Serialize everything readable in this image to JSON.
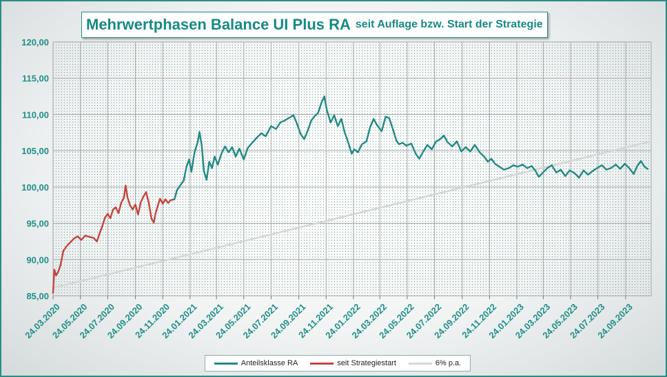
{
  "colors": {
    "fund": "#208a83",
    "start": "#c3453d",
    "target": "#d6d6d6",
    "axis_text": "#1f8f87",
    "grid": "#a9a9a9"
  },
  "chart_data": {
    "type": "line",
    "title": "Mehrwertphasen Balance UI Plus RA",
    "subtitle": "seit Auflage bzw. Start der Strategie",
    "xlabel": "",
    "ylabel": "",
    "x_range": [
      "2020-03-24",
      "2023-11-20"
    ],
    "ylim": [
      85,
      120
    ],
    "y_ticks": [
      "120,00",
      "115,00",
      "110,00",
      "105,00",
      "100,00",
      "95,00",
      "90,00",
      "85,00"
    ],
    "x_ticks": [
      "24.03.2020",
      "24.05.2020",
      "24.07.2020",
      "24.09.2020",
      "24.11.2020",
      "24.01.2021",
      "24.03.2021",
      "24.05.2021",
      "24.07.2021",
      "24.09.2021",
      "24.11.2021",
      "24.01.2022",
      "24.03.2022",
      "24.05.2022",
      "24.07.2022",
      "24.09.2022",
      "24.11.2022",
      "24.01.2023",
      "24.03.2023",
      "24.05.2023",
      "24.07.2023",
      "24.09.2023"
    ],
    "grid": true,
    "legend_position": "bottom",
    "series": [
      {
        "name": "Anteilsklasse RA",
        "color": "#208a83",
        "points": [
          [
            "2020-12-20",
            98.3
          ],
          [
            "2020-12-26",
            99.6
          ],
          [
            "2021-01-02",
            100.2
          ],
          [
            "2021-01-10",
            100.9
          ],
          [
            "2021-01-16",
            102.8
          ],
          [
            "2021-01-22",
            103.8
          ],
          [
            "2021-01-27",
            102.1
          ],
          [
            "2021-02-03",
            104.8
          ],
          [
            "2021-02-10",
            106.2
          ],
          [
            "2021-02-14",
            107.6
          ],
          [
            "2021-02-19",
            105.8
          ],
          [
            "2021-02-24",
            102.2
          ],
          [
            "2021-03-02",
            101.0
          ],
          [
            "2021-03-08",
            103.5
          ],
          [
            "2021-03-14",
            102.6
          ],
          [
            "2021-03-20",
            104.2
          ],
          [
            "2021-03-27",
            103.1
          ],
          [
            "2021-04-04",
            104.6
          ],
          [
            "2021-04-12",
            105.6
          ],
          [
            "2021-04-20",
            104.8
          ],
          [
            "2021-04-28",
            105.5
          ],
          [
            "2021-05-06",
            104.2
          ],
          [
            "2021-05-14",
            105.3
          ],
          [
            "2021-05-24",
            103.8
          ],
          [
            "2021-06-02",
            105.4
          ],
          [
            "2021-06-12",
            106.1
          ],
          [
            "2021-06-22",
            106.8
          ],
          [
            "2021-07-02",
            107.4
          ],
          [
            "2021-07-12",
            107.0
          ],
          [
            "2021-07-24",
            108.4
          ],
          [
            "2021-08-04",
            108.0
          ],
          [
            "2021-08-14",
            108.9
          ],
          [
            "2021-08-24",
            109.2
          ],
          [
            "2021-09-04",
            109.6
          ],
          [
            "2021-09-12",
            109.9
          ],
          [
            "2021-09-20",
            108.7
          ],
          [
            "2021-09-28",
            107.3
          ],
          [
            "2021-10-06",
            106.6
          ],
          [
            "2021-10-14",
            107.8
          ],
          [
            "2021-10-22",
            109.2
          ],
          [
            "2021-10-30",
            109.8
          ],
          [
            "2021-11-06",
            110.2
          ],
          [
            "2021-11-14",
            111.7
          ],
          [
            "2021-11-20",
            112.5
          ],
          [
            "2021-11-26",
            110.5
          ],
          [
            "2021-12-04",
            108.9
          ],
          [
            "2021-12-12",
            109.9
          ],
          [
            "2021-12-20",
            108.4
          ],
          [
            "2021-12-28",
            109.4
          ],
          [
            "2022-01-04",
            107.6
          ],
          [
            "2022-01-12",
            106.2
          ],
          [
            "2022-01-20",
            104.6
          ],
          [
            "2022-01-26",
            105.2
          ],
          [
            "2022-02-03",
            104.8
          ],
          [
            "2022-02-12",
            105.9
          ],
          [
            "2022-02-22",
            106.3
          ],
          [
            "2022-03-02",
            108.2
          ],
          [
            "2022-03-10",
            109.4
          ],
          [
            "2022-03-18",
            108.5
          ],
          [
            "2022-03-28",
            107.7
          ],
          [
            "2022-04-06",
            109.7
          ],
          [
            "2022-04-14",
            109.5
          ],
          [
            "2022-04-22",
            108.0
          ],
          [
            "2022-04-30",
            106.4
          ],
          [
            "2022-05-06",
            105.9
          ],
          [
            "2022-05-14",
            106.1
          ],
          [
            "2022-05-22",
            105.7
          ],
          [
            "2022-06-02",
            106.0
          ],
          [
            "2022-06-12",
            104.6
          ],
          [
            "2022-06-20",
            103.9
          ],
          [
            "2022-06-28",
            104.8
          ],
          [
            "2022-07-08",
            105.8
          ],
          [
            "2022-07-18",
            105.2
          ],
          [
            "2022-07-28",
            106.3
          ],
          [
            "2022-08-06",
            106.6
          ],
          [
            "2022-08-14",
            107.1
          ],
          [
            "2022-08-22",
            106.2
          ],
          [
            "2022-09-02",
            105.6
          ],
          [
            "2022-09-12",
            106.3
          ],
          [
            "2022-09-22",
            104.9
          ],
          [
            "2022-10-02",
            105.5
          ],
          [
            "2022-10-12",
            104.9
          ],
          [
            "2022-10-22",
            105.8
          ],
          [
            "2022-11-02",
            104.8
          ],
          [
            "2022-11-12",
            104.2
          ],
          [
            "2022-11-20",
            103.5
          ],
          [
            "2022-11-28",
            103.9
          ],
          [
            "2022-12-06",
            103.2
          ],
          [
            "2022-12-16",
            102.8
          ],
          [
            "2022-12-26",
            102.4
          ],
          [
            "2023-01-06",
            102.6
          ],
          [
            "2023-01-16",
            103.0
          ],
          [
            "2023-01-26",
            102.8
          ],
          [
            "2023-02-06",
            103.1
          ],
          [
            "2023-02-16",
            102.6
          ],
          [
            "2023-02-26",
            102.9
          ],
          [
            "2023-03-06",
            102.3
          ],
          [
            "2023-03-14",
            101.4
          ],
          [
            "2023-03-22",
            101.9
          ],
          [
            "2023-04-02",
            102.6
          ],
          [
            "2023-04-12",
            103.0
          ],
          [
            "2023-04-22",
            102.0
          ],
          [
            "2023-05-02",
            102.4
          ],
          [
            "2023-05-12",
            101.5
          ],
          [
            "2023-05-22",
            102.3
          ],
          [
            "2023-06-02",
            101.9
          ],
          [
            "2023-06-12",
            101.3
          ],
          [
            "2023-06-22",
            102.3
          ],
          [
            "2023-07-02",
            101.7
          ],
          [
            "2023-07-12",
            102.2
          ],
          [
            "2023-07-22",
            102.6
          ],
          [
            "2023-08-02",
            103.0
          ],
          [
            "2023-08-12",
            102.4
          ],
          [
            "2023-08-22",
            102.6
          ],
          [
            "2023-09-02",
            103.1
          ],
          [
            "2023-09-12",
            102.5
          ],
          [
            "2023-09-22",
            103.2
          ],
          [
            "2023-10-02",
            102.6
          ],
          [
            "2023-10-12",
            101.8
          ],
          [
            "2023-10-20",
            102.9
          ],
          [
            "2023-10-28",
            103.6
          ],
          [
            "2023-11-05",
            102.8
          ],
          [
            "2023-11-12",
            102.5
          ]
        ]
      },
      {
        "name": "seit Strategiestart",
        "color": "#c3453d",
        "points": [
          [
            "2020-03-24",
            85.4
          ],
          [
            "2020-03-27",
            88.6
          ],
          [
            "2020-03-31",
            87.8
          ],
          [
            "2020-04-05",
            88.4
          ],
          [
            "2020-04-10",
            89.3
          ],
          [
            "2020-04-16",
            91.2
          ],
          [
            "2020-04-24",
            91.9
          ],
          [
            "2020-05-02",
            92.4
          ],
          [
            "2020-05-10",
            92.9
          ],
          [
            "2020-05-18",
            93.2
          ],
          [
            "2020-05-26",
            92.7
          ],
          [
            "2020-06-04",
            93.3
          ],
          [
            "2020-06-14",
            93.1
          ],
          [
            "2020-06-22",
            93.0
          ],
          [
            "2020-06-30",
            92.5
          ],
          [
            "2020-07-06",
            93.6
          ],
          [
            "2020-07-12",
            94.6
          ],
          [
            "2020-07-18",
            95.8
          ],
          [
            "2020-07-24",
            96.3
          ],
          [
            "2020-07-30",
            95.7
          ],
          [
            "2020-08-05",
            96.9
          ],
          [
            "2020-08-11",
            97.2
          ],
          [
            "2020-08-17",
            96.4
          ],
          [
            "2020-08-23",
            97.8
          ],
          [
            "2020-08-29",
            98.5
          ],
          [
            "2020-09-02",
            100.2
          ],
          [
            "2020-09-06",
            98.6
          ],
          [
            "2020-09-12",
            97.5
          ],
          [
            "2020-09-18",
            96.9
          ],
          [
            "2020-09-24",
            97.6
          ],
          [
            "2020-09-30",
            96.2
          ],
          [
            "2020-10-06",
            97.9
          ],
          [
            "2020-10-12",
            98.7
          ],
          [
            "2020-10-18",
            99.3
          ],
          [
            "2020-10-24",
            97.8
          ],
          [
            "2020-10-30",
            95.6
          ],
          [
            "2020-11-04",
            95.1
          ],
          [
            "2020-11-08",
            96.4
          ],
          [
            "2020-11-13",
            97.4
          ],
          [
            "2020-11-18",
            98.4
          ],
          [
            "2020-11-24",
            97.7
          ],
          [
            "2020-11-30",
            98.3
          ],
          [
            "2020-12-06",
            97.8
          ],
          [
            "2020-12-12",
            98.2
          ],
          [
            "2020-12-20",
            98.3
          ]
        ]
      },
      {
        "name": "6% p.a.",
        "color": "#d6d6d6",
        "points": [
          [
            "2020-03-24",
            86.1
          ],
          [
            "2023-11-20",
            106.3
          ]
        ]
      }
    ]
  }
}
